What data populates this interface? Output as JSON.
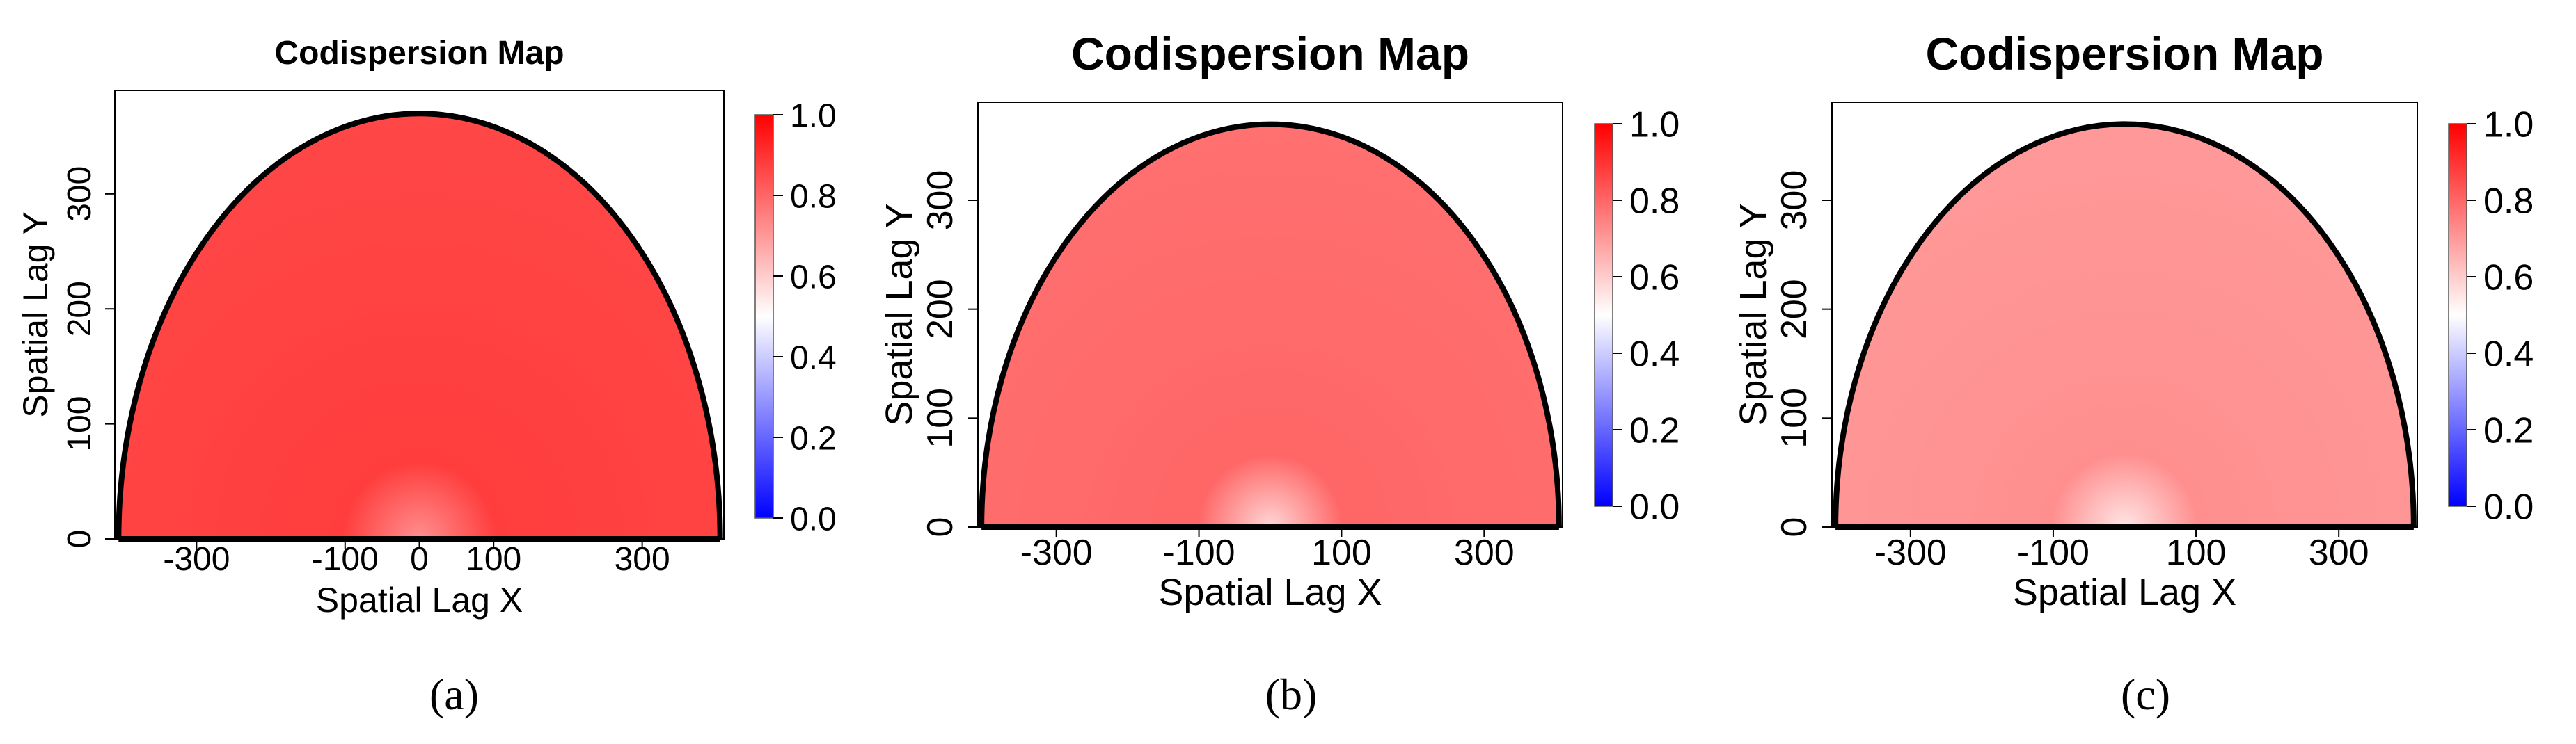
{
  "chart_data": [
    {
      "type": "heatmap",
      "title": "Codispersion Map",
      "xlabel": "Spatial Lag X",
      "ylabel": "Spatial Lag Y",
      "xlim": [
        -410,
        410
      ],
      "ylim": [
        0,
        390
      ],
      "x_ticks": [
        -300,
        -100,
        0,
        100,
        300
      ],
      "y_ticks": [
        0,
        100,
        200,
        300
      ],
      "domain": "upper half-ellipse",
      "domain_semi_axes": {
        "x": 405,
        "y": 370
      },
      "center_value": 0.72,
      "field_value": 0.88,
      "colorbar": {
        "min": 0.0,
        "max": 1.0,
        "ticks": [
          0.0,
          0.2,
          0.4,
          0.6,
          0.8,
          1.0
        ],
        "colors": [
          "#0000ff",
          "#ffffff",
          "#ff0000"
        ],
        "midpoint": 0.5
      },
      "caption": "(a)"
    },
    {
      "type": "heatmap",
      "title": "Codispersion Map",
      "xlabel": "Spatial Lag X",
      "ylabel": "Spatial Lag Y",
      "xlim": [
        -410,
        410
      ],
      "ylim": [
        0,
        390
      ],
      "x_ticks": [
        -300,
        -100,
        100,
        300
      ],
      "y_ticks": [
        0,
        100,
        200,
        300
      ],
      "domain": "upper half-ellipse",
      "domain_semi_axes": {
        "x": 405,
        "y": 370
      },
      "center_value": 0.58,
      "field_value": 0.8,
      "colorbar": {
        "min": 0.0,
        "max": 1.0,
        "ticks": [
          0.0,
          0.2,
          0.4,
          0.6,
          0.8,
          1.0
        ],
        "colors": [
          "#0000ff",
          "#ffffff",
          "#ff0000"
        ],
        "midpoint": 0.5
      },
      "caption": "(b)"
    },
    {
      "type": "heatmap",
      "title": "Codispersion Map",
      "xlabel": "Spatial Lag X",
      "ylabel": "Spatial Lag Y",
      "xlim": [
        -410,
        410
      ],
      "ylim": [
        0,
        390
      ],
      "x_ticks": [
        -300,
        -100,
        100,
        300
      ],
      "y_ticks": [
        0,
        100,
        200,
        300
      ],
      "domain": "upper half-ellipse",
      "domain_semi_axes": {
        "x": 405,
        "y": 370
      },
      "center_value": 0.55,
      "field_value": 0.72,
      "colorbar": {
        "min": 0.0,
        "max": 1.0,
        "ticks": [
          0.0,
          0.2,
          0.4,
          0.6,
          0.8,
          1.0
        ],
        "colors": [
          "#0000ff",
          "#ffffff",
          "#ff0000"
        ],
        "midpoint": 0.5
      },
      "caption": "(c)"
    }
  ]
}
